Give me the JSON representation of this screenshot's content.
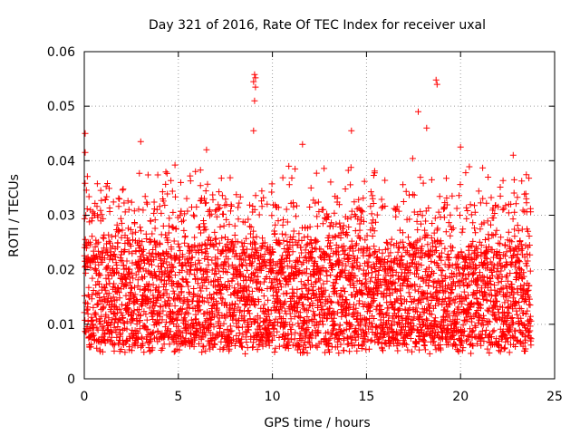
{
  "chart_data": {
    "type": "scatter",
    "title": "Day 321 of 2016, Rate Of TEC Index for receiver uxal",
    "xlabel": "GPS time / hours",
    "ylabel": "ROTI / TECUs",
    "xlim": [
      0,
      25
    ],
    "ylim": [
      0,
      0.06
    ],
    "xticks": [
      0,
      5,
      10,
      15,
      20,
      25
    ],
    "xtick_labels": [
      "0",
      "5",
      "10",
      "15",
      "20",
      "25"
    ],
    "yticks": [
      0,
      0.01,
      0.02,
      0.03,
      0.04,
      0.05,
      0.06
    ],
    "ytick_labels": [
      "0",
      "0.01",
      "0.02",
      "0.03",
      "0.04",
      "0.05",
      "0.06"
    ],
    "grid": true,
    "marker": "+",
    "color": "#ff0000",
    "series": [
      {
        "name": "ROTI",
        "x_range": [
          0,
          23.75
        ],
        "typical_band": [
          0.006,
          0.025
        ],
        "notable_peaks": [
          {
            "x": 0.05,
            "y": 0.045
          },
          {
            "x": 0.05,
            "y": 0.0415
          },
          {
            "x": 3.0,
            "y": 0.0435
          },
          {
            "x": 6.5,
            "y": 0.042
          },
          {
            "x": 9.05,
            "y": 0.0558
          },
          {
            "x": 9.1,
            "y": 0.0552
          },
          {
            "x": 9.0,
            "y": 0.0545
          },
          {
            "x": 9.1,
            "y": 0.0535
          },
          {
            "x": 9.05,
            "y": 0.051
          },
          {
            "x": 9.0,
            "y": 0.0455
          },
          {
            "x": 11.6,
            "y": 0.043
          },
          {
            "x": 14.2,
            "y": 0.0455
          },
          {
            "x": 17.75,
            "y": 0.049
          },
          {
            "x": 18.2,
            "y": 0.046
          },
          {
            "x": 18.7,
            "y": 0.0548
          },
          {
            "x": 18.75,
            "y": 0.054
          },
          {
            "x": 20.0,
            "y": 0.0425
          },
          {
            "x": 22.8,
            "y": 0.041
          }
        ]
      }
    ]
  }
}
